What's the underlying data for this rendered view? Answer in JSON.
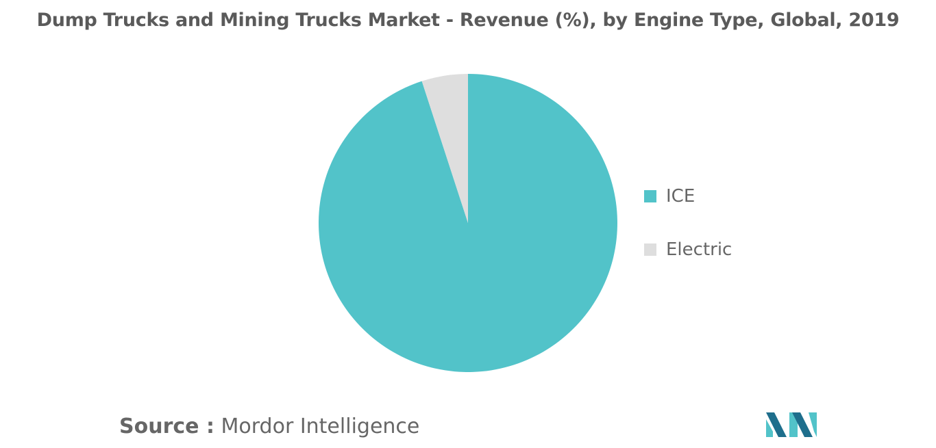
{
  "chart_data": {
    "type": "pie",
    "title": "Dump Trucks and Mining Trucks Market - Revenue (%), by Engine Type, Global, 2019",
    "categories": [
      "ICE",
      "Electric"
    ],
    "values": [
      95,
      5
    ],
    "colors": [
      "#52c3c9",
      "#dedede"
    ],
    "legend_position": "right"
  },
  "source": {
    "prefix": "Source :",
    "name": "Mordor Intelligence"
  },
  "logo": {
    "icon": "mordor-intelligence-logo",
    "colors": [
      "#1e6e8c",
      "#52c3c9"
    ]
  }
}
